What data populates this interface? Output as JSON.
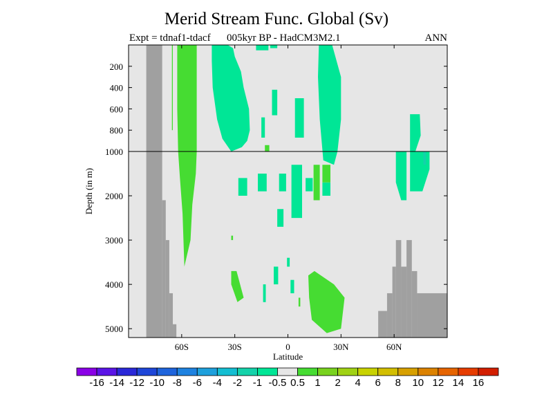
{
  "chart_data": {
    "type": "heatmap",
    "title": "Merid Stream Func. Global (Sv)",
    "subtitle_left": "Expt = tdnaf1-tdacf",
    "subtitle_center": "005kyr BP - HadCM3M2.1",
    "subtitle_right": "ANN",
    "xlabel": "Latitude",
    "ylabel": "Depth (in m)",
    "x_ticks": [
      "60S",
      "30S",
      "0",
      "30N",
      "60N"
    ],
    "x_tick_values": [
      -60,
      -30,
      0,
      30,
      60
    ],
    "xlim": [
      -90,
      90
    ],
    "y_ticks_upper": [
      "200",
      "400",
      "600",
      "800",
      "1000"
    ],
    "y_ticks_upper_values": [
      200,
      400,
      600,
      800,
      1000
    ],
    "y_ticks_lower": [
      "2000",
      "3000",
      "4000",
      "5000"
    ],
    "y_ticks_lower_values": [
      2000,
      3000,
      4000,
      5000
    ],
    "ylim": [
      5200,
      0
    ],
    "y_axis_break_at": 1000,
    "background_color": "#e6e6e6",
    "land_color": "#a0a0a0",
    "colorbar": {
      "labels": [
        "-16",
        "-14",
        "-12",
        "-10",
        "-8",
        "-6",
        "-4",
        "-2",
        "-1",
        "-0.5",
        "0.5",
        "1",
        "2",
        "4",
        "6",
        "8",
        "10",
        "12",
        "14",
        "16"
      ],
      "colors": [
        "#8a00e6",
        "#5a14e6",
        "#2a28d8",
        "#1e46d8",
        "#1e64dc",
        "#1e82e0",
        "#1ea0dc",
        "#14bed2",
        "#14d2aa",
        "#00e696",
        "#e6e6e6",
        "#46dc32",
        "#78d21e",
        "#a0d214",
        "#c8d200",
        "#d2be00",
        "#d7a000",
        "#dc8200",
        "#e66400",
        "#e63c00",
        "#d21e00"
      ]
    },
    "land_segments": [
      {
        "lat": [
          -80,
          -71
        ],
        "depth": [
          0,
          5200
        ]
      },
      {
        "lat": [
          -71,
          -69
        ],
        "depth": [
          2100,
          5200
        ]
      },
      {
        "lat": [
          -69,
          -67
        ],
        "depth": [
          3000,
          5200
        ]
      },
      {
        "lat": [
          -67,
          -65
        ],
        "depth": [
          4200,
          5200
        ]
      },
      {
        "lat": [
          -65,
          -63
        ],
        "depth": [
          4900,
          5200
        ]
      },
      {
        "lat": [
          51,
          56
        ],
        "depth": [
          4600,
          5200
        ]
      },
      {
        "lat": [
          56,
          59
        ],
        "depth": [
          4200,
          5200
        ]
      },
      {
        "lat": [
          59,
          61
        ],
        "depth": [
          3600,
          5200
        ]
      },
      {
        "lat": [
          61,
          64
        ],
        "depth": [
          3000,
          5200
        ]
      },
      {
        "lat": [
          64,
          67
        ],
        "depth": [
          3600,
          5200
        ]
      },
      {
        "lat": [
          67,
          70
        ],
        "depth": [
          3000,
          5200
        ]
      },
      {
        "lat": [
          70,
          73
        ],
        "depth": [
          3700,
          5200
        ]
      },
      {
        "lat": [
          73,
          90
        ],
        "depth": [
          4200,
          5200
        ]
      }
    ],
    "regions": [
      {
        "value": 0.8,
        "points": [
          [
            -62.5,
            0
          ],
          [
            -51.5,
            0
          ],
          [
            -51.5,
            1000
          ],
          [
            -52,
            1500
          ],
          [
            -54,
            2200
          ],
          [
            -55,
            3000
          ],
          [
            -58.5,
            3600
          ],
          [
            -59.5,
            2400
          ],
          [
            -61,
            1600
          ],
          [
            -62,
            1000
          ],
          [
            -62.5,
            600
          ]
        ]
      },
      {
        "value": 0.8,
        "points": [
          [
            -65.5,
            0
          ],
          [
            -65,
            0
          ],
          [
            -65,
            800
          ],
          [
            -65.5,
            800
          ]
        ]
      },
      {
        "value": -0.8,
        "points": [
          [
            -43,
            0
          ],
          [
            -34,
            0
          ],
          [
            -31,
            30
          ],
          [
            -30,
            110
          ],
          [
            -26.5,
            250
          ],
          [
            -25,
            400
          ],
          [
            -22,
            600
          ],
          [
            -21.5,
            800
          ],
          [
            -23,
            900
          ],
          [
            -26,
            960
          ],
          [
            -32,
            1000
          ],
          [
            -37,
            880
          ],
          [
            -40,
            700
          ],
          [
            -42.5,
            400
          ],
          [
            -43,
            150
          ]
        ]
      },
      {
        "value": -0.8,
        "points": [
          [
            -39.5,
            40
          ],
          [
            -36.5,
            40
          ],
          [
            -36.5,
            320
          ],
          [
            -39.5,
            320
          ]
        ]
      },
      {
        "value": -0.8,
        "points": [
          [
            -18,
            0
          ],
          [
            -11,
            0
          ],
          [
            -11,
            50
          ],
          [
            -18,
            50
          ]
        ]
      },
      {
        "value": -0.8,
        "points": [
          [
            -10,
            0
          ],
          [
            -6,
            0
          ],
          [
            -6,
            30
          ],
          [
            -10,
            30
          ]
        ]
      },
      {
        "value": -0.8,
        "points": [
          [
            -9,
            420
          ],
          [
            -6,
            420
          ],
          [
            -6,
            660
          ],
          [
            -9,
            660
          ]
        ]
      },
      {
        "value": -0.8,
        "points": [
          [
            -15,
            680
          ],
          [
            -13,
            680
          ],
          [
            -13,
            870
          ],
          [
            -15,
            870
          ]
        ]
      },
      {
        "value": -0.8,
        "points": [
          [
            17.5,
            0
          ],
          [
            25,
            0
          ],
          [
            30,
            300
          ],
          [
            30,
            700
          ],
          [
            28,
            1000
          ],
          [
            26,
            1300
          ],
          [
            20,
            1200
          ],
          [
            18,
            700
          ],
          [
            17,
            300
          ]
        ]
      },
      {
        "value": -0.8,
        "points": [
          [
            4,
            500
          ],
          [
            9,
            500
          ],
          [
            9,
            870
          ],
          [
            4,
            870
          ]
        ]
      },
      {
        "value": 0.8,
        "points": [
          [
            -13,
            940
          ],
          [
            -10.5,
            940
          ],
          [
            -10.5,
            1000
          ],
          [
            -13,
            1000
          ]
        ]
      },
      {
        "value": -0.8,
        "points": [
          [
            -28,
            1600
          ],
          [
            -23,
            1600
          ],
          [
            -23,
            2000
          ],
          [
            -28,
            2000
          ]
        ]
      },
      {
        "value": -0.8,
        "points": [
          [
            -17,
            1500
          ],
          [
            -12,
            1500
          ],
          [
            -12,
            1900
          ],
          [
            -17,
            1900
          ]
        ]
      },
      {
        "value": -0.8,
        "points": [
          [
            -5,
            1500
          ],
          [
            -1,
            1500
          ],
          [
            -1,
            1900
          ],
          [
            -5,
            1900
          ]
        ]
      },
      {
        "value": -0.8,
        "points": [
          [
            2,
            1300
          ],
          [
            8,
            1300
          ],
          [
            8,
            2500
          ],
          [
            2,
            2500
          ]
        ]
      },
      {
        "value": -0.8,
        "points": [
          [
            10,
            1600
          ],
          [
            14,
            1600
          ],
          [
            14,
            1900
          ],
          [
            10,
            1900
          ]
        ]
      },
      {
        "value": -0.8,
        "points": [
          [
            -6,
            2300
          ],
          [
            -2.5,
            2300
          ],
          [
            -2.5,
            2700
          ],
          [
            -6,
            2700
          ]
        ]
      },
      {
        "value": -0.8,
        "points": [
          [
            19.5,
            1700
          ],
          [
            24,
            1700
          ],
          [
            24,
            2000
          ],
          [
            19.5,
            2000
          ]
        ]
      },
      {
        "value": 0.8,
        "points": [
          [
            19.5,
            1300
          ],
          [
            24,
            1300
          ],
          [
            24,
            1700
          ],
          [
            19.5,
            1700
          ]
        ]
      },
      {
        "value": 0.8,
        "points": [
          [
            14.5,
            1300
          ],
          [
            18,
            1300
          ],
          [
            18,
            2100
          ],
          [
            14.5,
            2100
          ]
        ]
      },
      {
        "value": 0.8,
        "points": [
          [
            -32,
            2900
          ],
          [
            -31,
            2900
          ],
          [
            -31,
            3000
          ],
          [
            -32,
            3000
          ]
        ]
      },
      {
        "value": -0.8,
        "points": [
          [
            61,
            1000
          ],
          [
            67,
            1000
          ],
          [
            67,
            2100
          ],
          [
            64,
            2100
          ],
          [
            61,
            1700
          ]
        ]
      },
      {
        "value": -0.8,
        "points": [
          [
            69,
            650
          ],
          [
            74.5,
            650
          ],
          [
            75,
            850
          ],
          [
            72,
            1000
          ],
          [
            69,
            1000
          ]
        ]
      },
      {
        "value": -0.8,
        "points": [
          [
            69,
            1000
          ],
          [
            80,
            1000
          ],
          [
            80,
            1400
          ],
          [
            76,
            1900
          ],
          [
            69,
            1900
          ]
        ]
      },
      {
        "value": -1.5,
        "points": [
          [
            76.5,
            1000
          ],
          [
            78,
            1000
          ],
          [
            78,
            1300
          ],
          [
            76.5,
            1300
          ]
        ]
      },
      {
        "value": 0.8,
        "points": [
          [
            -32,
            3700
          ],
          [
            -29,
            3700
          ],
          [
            -25,
            4300
          ],
          [
            -28.5,
            4400
          ],
          [
            -32,
            4000
          ]
        ]
      },
      {
        "value": -0.8,
        "points": [
          [
            -14,
            4000
          ],
          [
            -12.5,
            4000
          ],
          [
            -12.5,
            4400
          ],
          [
            -14,
            4400
          ]
        ]
      },
      {
        "value": -0.8,
        "points": [
          [
            -8,
            3600
          ],
          [
            -5.5,
            3600
          ],
          [
            -5.5,
            4000
          ],
          [
            -8,
            4000
          ]
        ]
      },
      {
        "value": 0.8,
        "points": [
          [
            11.5,
            3800
          ],
          [
            15,
            3700
          ],
          [
            26,
            4000
          ],
          [
            32,
            4300
          ],
          [
            30,
            5000
          ],
          [
            22,
            5100
          ],
          [
            13.5,
            4800
          ],
          [
            12,
            4300
          ]
        ]
      },
      {
        "value": 0.8,
        "points": [
          [
            6,
            4300
          ],
          [
            7,
            4300
          ],
          [
            7,
            4500
          ],
          [
            6,
            4500
          ]
        ]
      },
      {
        "value": -0.8,
        "points": [
          [
            -0.5,
            3400
          ],
          [
            1,
            3400
          ],
          [
            1,
            3600
          ],
          [
            -0.5,
            3600
          ]
        ]
      },
      {
        "value": -0.8,
        "points": [
          [
            1.5,
            3900
          ],
          [
            3.5,
            3900
          ],
          [
            3.5,
            4200
          ],
          [
            1.5,
            4200
          ]
        ]
      }
    ]
  }
}
